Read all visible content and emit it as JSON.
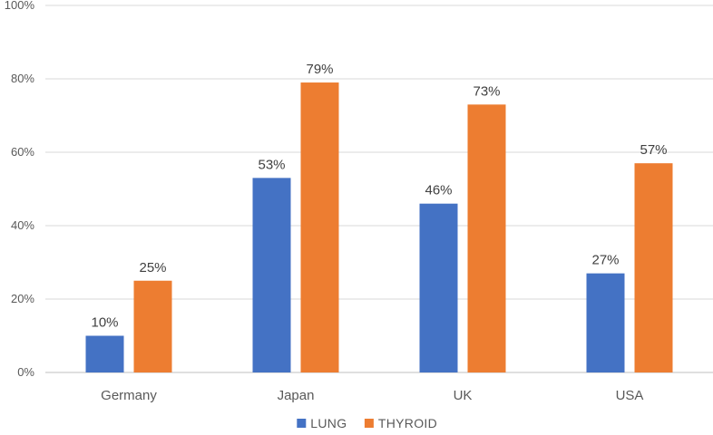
{
  "chart_data": {
    "type": "bar",
    "title": "",
    "xlabel": "",
    "ylabel": "",
    "categories": [
      "Germany",
      "Japan",
      "UK",
      "USA"
    ],
    "series": [
      {
        "name": "LUNG",
        "values": [
          10,
          53,
          46,
          27
        ],
        "color": "#4472c4"
      },
      {
        "name": "THYROID",
        "values": [
          25,
          79,
          73,
          57
        ],
        "color": "#ed7d31"
      }
    ],
    "value_labels": {
      "LUNG": [
        "10%",
        "53%",
        "46%",
        "27%"
      ],
      "THYROID": [
        "25%",
        "79%",
        "73%",
        "57%"
      ]
    },
    "ylim": [
      0,
      100
    ],
    "yticks": [
      "0%",
      "20%",
      "40%",
      "60%",
      "80%",
      "100%"
    ],
    "grid": true,
    "legend": "bottom-center"
  }
}
